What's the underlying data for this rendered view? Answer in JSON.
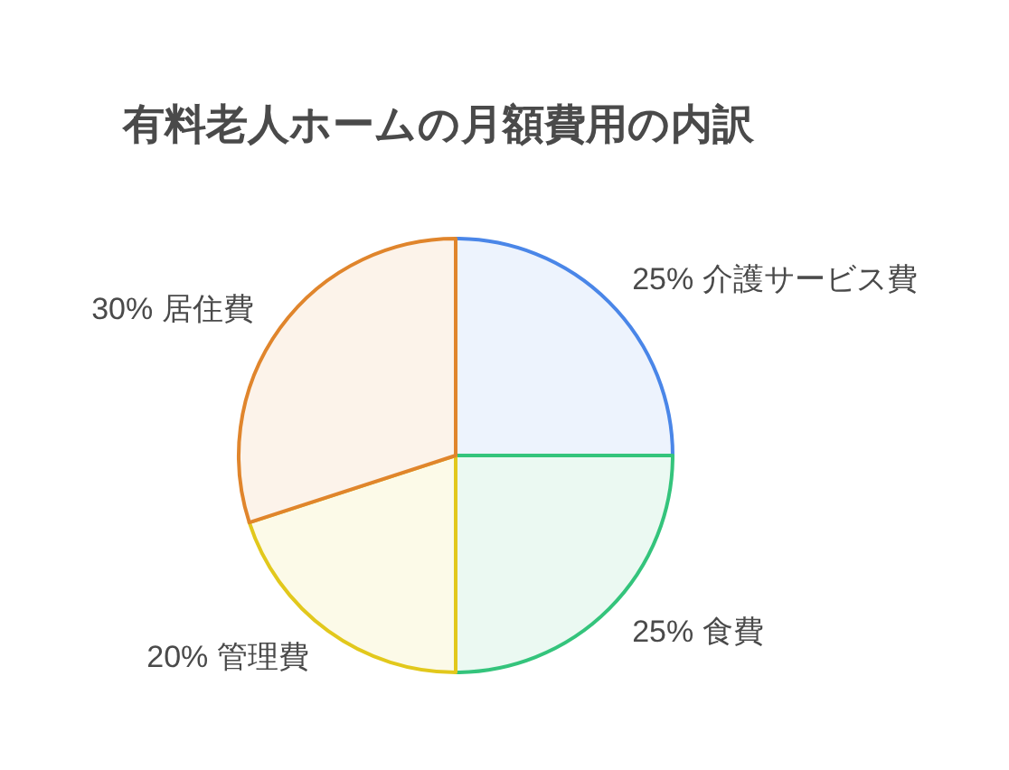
{
  "chart_data": {
    "type": "pie",
    "title": "有料老人ホームの月額費用の内訳",
    "categories": [
      "介護サービス費",
      "食費",
      "管理費",
      "居住費"
    ],
    "values": [
      25,
      25,
      20,
      30
    ],
    "value_labels": [
      "25%",
      "25%",
      "20%",
      "30%"
    ],
    "colors": [
      "#4a86e8",
      "#34c47c",
      "#e2c81c",
      "#e0852c"
    ]
  }
}
